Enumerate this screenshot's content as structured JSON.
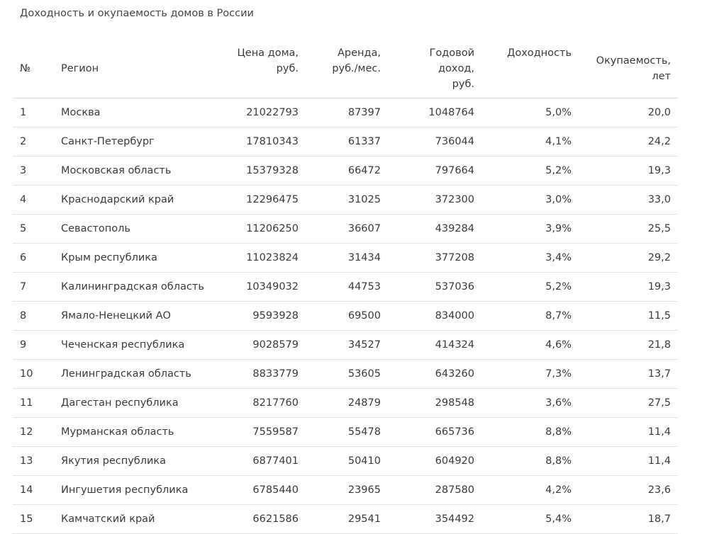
{
  "title": "Доходность и окупаемость домов в России",
  "table": {
    "headers": {
      "num": "№",
      "region": "Регион",
      "price_l1": "Цена дома,",
      "price_l2": "руб.",
      "rent_l1": "Аренда,",
      "rent_l2": "руб./мес.",
      "income_l1": "Годовой доход,",
      "income_l2": "руб.",
      "yield": "Доходность",
      "payback": "Окупаемость, лет"
    },
    "rows": [
      [
        "1",
        "Москва",
        "21022793",
        "87397",
        "1048764",
        "5,0%",
        "20,0"
      ],
      [
        "2",
        "Санкт-Петербург",
        "17810343",
        "61337",
        "736044",
        "4,1%",
        "24,2"
      ],
      [
        "3",
        "Московская область",
        "15379328",
        "66472",
        "797664",
        "5,2%",
        "19,3"
      ],
      [
        "4",
        "Краснодарский край",
        "12296475",
        "31025",
        "372300",
        "3,0%",
        "33,0"
      ],
      [
        "5",
        "Севастополь",
        "11206250",
        "36607",
        "439284",
        "3,9%",
        "25,5"
      ],
      [
        "6",
        "Крым республика",
        "11023824",
        "31434",
        "377208",
        "3,4%",
        "29,2"
      ],
      [
        "7",
        "Калининградская область",
        "10349032",
        "44753",
        "537036",
        "5,2%",
        "19,3"
      ],
      [
        "8",
        "Ямало-Ненецкий АО",
        "9593928",
        "69500",
        "834000",
        "8,7%",
        "11,5"
      ],
      [
        "9",
        "Чеченская республика",
        "9028579",
        "34527",
        "414324",
        "4,6%",
        "21,8"
      ],
      [
        "10",
        "Ленинградская область",
        "8833779",
        "53605",
        "643260",
        "7,3%",
        "13,7"
      ],
      [
        "11",
        "Дагестан республика",
        "8217760",
        "24879",
        "298548",
        "3,6%",
        "27,5"
      ],
      [
        "12",
        "Мурманская область",
        "7559587",
        "55478",
        "665736",
        "8,8%",
        "11,4"
      ],
      [
        "13",
        "Якутия республика",
        "6877401",
        "50410",
        "604920",
        "8,8%",
        "11,4"
      ],
      [
        "14",
        "Ингушетия республика",
        "6785440",
        "23965",
        "287580",
        "4,2%",
        "23,6"
      ],
      [
        "15",
        "Камчатский край",
        "6621586",
        "29541",
        "354492",
        "5,4%",
        "18,7"
      ]
    ]
  }
}
